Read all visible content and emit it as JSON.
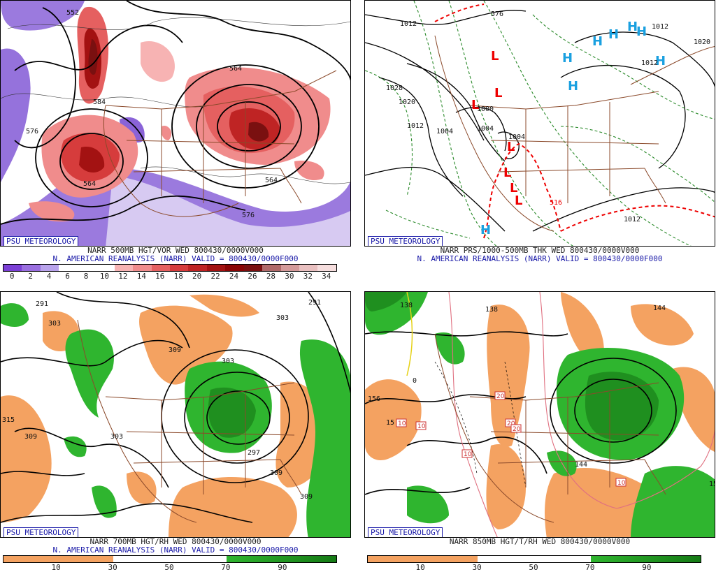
{
  "badge": "PSU METEOROLOGY",
  "panels": {
    "vor": {
      "line1": "NARR 500MB HGT/VOR WED 800430/0000V000",
      "line2": "N. AMERICAN REANALYSIS (NARR) VALID = 800430/0000F000",
      "scale_ticks": [
        "0",
        "2",
        "4",
        "6",
        "8",
        "10",
        "12",
        "14",
        "16",
        "18",
        "20",
        "22",
        "24",
        "26",
        "28",
        "30",
        "32",
        "34"
      ],
      "scale_colors": [
        "#7b3fd6",
        "#9a6fe0",
        "#b9a3ec",
        "#ffffff",
        "#ffffff",
        "#ffffff",
        "#f7b3b3",
        "#f08c8c",
        "#e56060",
        "#d63c3c",
        "#bf2424",
        "#a31212",
        "#8a0505",
        "#7a1010",
        "#b06a6a",
        "#d49a9a",
        "#e9c0c0",
        "#f6dede"
      ],
      "labels": [
        "552",
        "576",
        "564",
        "564",
        "564",
        "576",
        "584"
      ]
    },
    "thk": {
      "line1": "NARR PRS/1000-500MB THK WED 800430/0000V000",
      "line2": "N. AMERICAN REANALYSIS (NARR) VALID = 800430/0000F000",
      "labels": [
        "1012",
        "1028",
        "1020",
        "1012",
        "1004",
        "1004",
        "1000",
        "1004",
        "1012",
        "1020",
        "1012",
        "1012",
        "576",
        "516"
      ],
      "highs": [
        "H",
        "H",
        "H",
        "H",
        "H",
        "H",
        "H",
        "H"
      ],
      "lows": [
        "L",
        "L",
        "L",
        "L",
        "L",
        "L",
        "L"
      ]
    },
    "rh700": {
      "line1": "NARR 700MB HGT/RH WED 800430/0000V000",
      "line2": "N. AMERICAN REANALYSIS (NARR) VALID = 800430/0000F000",
      "scale_ticks": [
        "10",
        "30",
        "50",
        "70",
        "90"
      ],
      "labels": [
        "291",
        "303",
        "309",
        "303",
        "315",
        "309",
        "303",
        "297",
        "309",
        "309",
        "303",
        "291"
      ]
    },
    "t850": {
      "line1": "NARR 850MB HGT/T/RH WED 800430/0000V000",
      "scale_ticks": [
        "10",
        "30",
        "50",
        "70",
        "90"
      ],
      "labels": [
        "138",
        "138",
        "156",
        "15",
        "144",
        "144",
        "15",
        "0"
      ],
      "box_labels": [
        "10",
        "10",
        "20",
        "20",
        "20",
        "10",
        "10"
      ]
    }
  },
  "colors": {
    "text_blue": "#1a1aa8",
    "dry_orange": "#f4a261",
    "moist_green": "#2fb52f",
    "state_lines": "#8b4a2b"
  }
}
